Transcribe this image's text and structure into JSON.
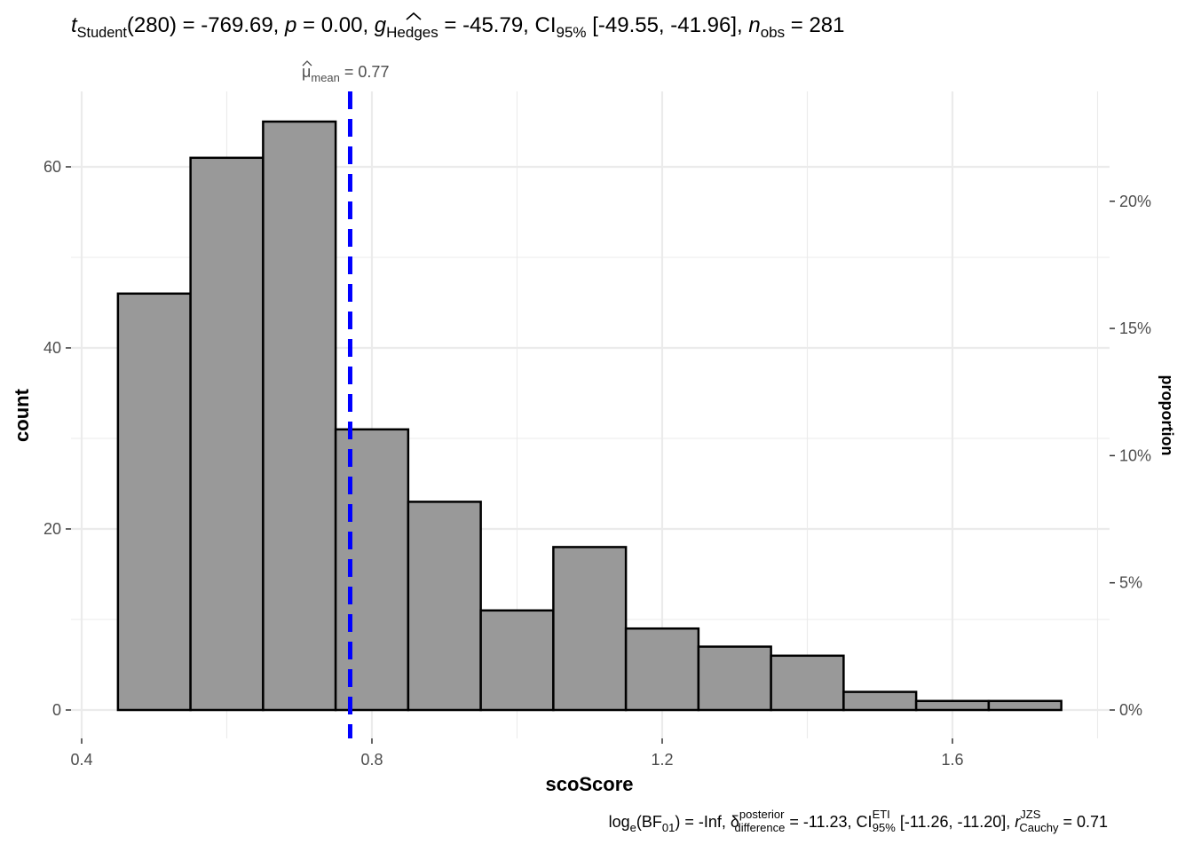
{
  "subtitle_top": {
    "t_sym": "t",
    "t_sub": "Student",
    "t_val": "(280) = -769.69, ",
    "p_sym": "p",
    "p_val": " = 0.00, ",
    "g_sym": "g",
    "g_sub": "Hedges",
    "g_val": " = -45.79, CI",
    "ci_sub": "95%",
    "ci_val": " [-49.55, -41.96], ",
    "n_sym": "n",
    "n_sub": "obs",
    "n_val": " = 281"
  },
  "caption_bottom": {
    "log_pre": "log",
    "log_sub": "e",
    "bf_open": "(BF",
    "bf_sub": "01",
    "bf_close": ") = -Inf, ",
    "delta_sym": "δ",
    "delta_sup": "posterior",
    "delta_sub": "difference",
    "delta_val": " = -11.23, CI",
    "ci_sup": "ETI",
    "ci_sub": "95%",
    "ci_val": " [-11.26, -11.20], ",
    "r_sym": "r",
    "r_sup": "JZS",
    "r_sub": "Cauchy",
    "r_val": " = 0.71"
  },
  "mean_label": {
    "sym": "μ",
    "sub": "mean",
    "val": " = 0.77"
  },
  "chart_data": {
    "type": "bar",
    "xlabel": "scoScore",
    "ylabel": "count",
    "y2label": "proportion",
    "xlim": [
      0.4,
      1.8
    ],
    "ylim": [
      0,
      67
    ],
    "x_ticks": [
      0.4,
      0.8,
      1.2,
      1.6
    ],
    "x_tick_labels": [
      "0.4",
      "0.8",
      "1.2",
      "1.6"
    ],
    "y_ticks": [
      0,
      20,
      40,
      60
    ],
    "y_tick_labels": [
      "0",
      "20",
      "40",
      "60"
    ],
    "y2_ticks": [
      0,
      0.05,
      0.1,
      0.15,
      0.2
    ],
    "y2_tick_labels": [
      "0%",
      "5%",
      "10%",
      "15%",
      "20%"
    ],
    "n_total": 281,
    "bin_width": 0.1,
    "bins": [
      {
        "x0": 0.45,
        "x1": 0.55,
        "count": 46
      },
      {
        "x0": 0.55,
        "x1": 0.65,
        "count": 61
      },
      {
        "x0": 0.65,
        "x1": 0.75,
        "count": 65
      },
      {
        "x0": 0.75,
        "x1": 0.85,
        "count": 31
      },
      {
        "x0": 0.85,
        "x1": 0.95,
        "count": 23
      },
      {
        "x0": 0.95,
        "x1": 1.05,
        "count": 11
      },
      {
        "x0": 1.05,
        "x1": 1.15,
        "count": 18
      },
      {
        "x0": 1.15,
        "x1": 1.25,
        "count": 9
      },
      {
        "x0": 1.25,
        "x1": 1.35,
        "count": 7
      },
      {
        "x0": 1.35,
        "x1": 1.45,
        "count": 6
      },
      {
        "x0": 1.45,
        "x1": 1.55,
        "count": 2
      },
      {
        "x0": 1.55,
        "x1": 1.65,
        "count": 1
      },
      {
        "x0": 1.65,
        "x1": 1.75,
        "count": 1
      }
    ],
    "mean": 0.77,
    "grid": true,
    "bar_fill": "#999999",
    "bar_stroke": "#000000",
    "mean_line_color": "#0000ff",
    "grid_color": "#ebebeb"
  }
}
